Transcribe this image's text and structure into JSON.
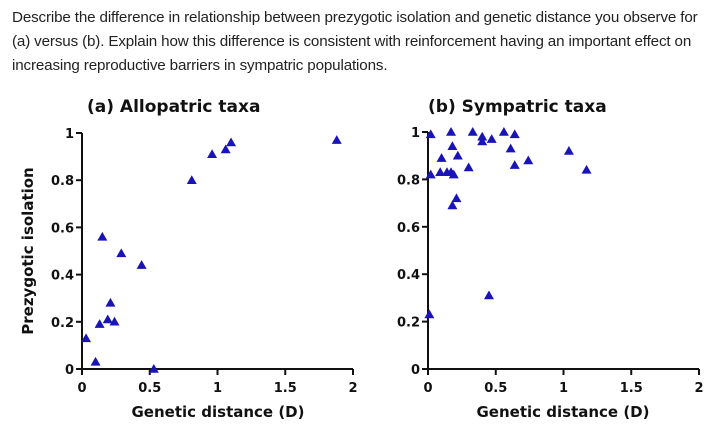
{
  "question": {
    "text": "Describe the difference in relationship between prezygotic isolation and genetic distance you observe for (a) versus (b). Explain  how this difference is consistent with reinforcement having an important effect on increasing reproductive barriers in sympatric populations."
  },
  "colors": {
    "marker": "#1a14b8",
    "axis": "#111111"
  },
  "chart_data": [
    {
      "type": "scatter",
      "title": "(a)  Allopatric taxa",
      "xlabel": "Genetic distance (D)",
      "ylabel": "Prezygotic isolation",
      "xlim": [
        0,
        2
      ],
      "ylim": [
        0,
        1
      ],
      "xticks": [
        0,
        0.5,
        1,
        1.5,
        2
      ],
      "xtick_labels": [
        "0",
        "0.5",
        "1",
        "1.5",
        "2"
      ],
      "yticks": [
        0,
        0.2,
        0.4,
        0.6,
        0.8,
        1
      ],
      "ytick_labels": [
        "0",
        "0.2",
        "0.4",
        "0.6",
        "0.8",
        "1"
      ],
      "grid": false,
      "marker": "triangle",
      "points": [
        {
          "x": 0.03,
          "y": 0.13
        },
        {
          "x": 0.1,
          "y": 0.03
        },
        {
          "x": 0.13,
          "y": 0.19
        },
        {
          "x": 0.19,
          "y": 0.21
        },
        {
          "x": 0.21,
          "y": 0.28
        },
        {
          "x": 0.24,
          "y": 0.2
        },
        {
          "x": 0.15,
          "y": 0.56
        },
        {
          "x": 0.29,
          "y": 0.49
        },
        {
          "x": 0.44,
          "y": 0.44
        },
        {
          "x": 0.53,
          "y": 0.0
        },
        {
          "x": 0.81,
          "y": 0.8
        },
        {
          "x": 0.96,
          "y": 0.91
        },
        {
          "x": 1.06,
          "y": 0.93
        },
        {
          "x": 1.1,
          "y": 0.96
        },
        {
          "x": 1.88,
          "y": 0.97
        }
      ]
    },
    {
      "type": "scatter",
      "title": "(b)  Sympatric taxa",
      "xlabel": "Genetic distance (D)",
      "ylabel": "",
      "xlim": [
        0,
        2
      ],
      "ylim": [
        0,
        1
      ],
      "xticks": [
        0,
        0.5,
        1,
        1.5,
        2
      ],
      "xtick_labels": [
        "0",
        "0.5",
        "1",
        "1.5",
        "2"
      ],
      "yticks": [
        0,
        0.2,
        0.4,
        0.6,
        0.8,
        1
      ],
      "ytick_labels": [
        "0",
        "0.2",
        "0.4",
        "0.6",
        "0.8",
        "1"
      ],
      "grid": false,
      "marker": "triangle",
      "points": [
        {
          "x": 0.02,
          "y": 0.99
        },
        {
          "x": 0.17,
          "y": 1.0
        },
        {
          "x": 0.33,
          "y": 1.0
        },
        {
          "x": 0.4,
          "y": 0.98
        },
        {
          "x": 0.4,
          "y": 0.96
        },
        {
          "x": 0.47,
          "y": 0.97
        },
        {
          "x": 0.56,
          "y": 1.0
        },
        {
          "x": 0.64,
          "y": 0.99
        },
        {
          "x": 0.18,
          "y": 0.94
        },
        {
          "x": 0.1,
          "y": 0.89
        },
        {
          "x": 0.22,
          "y": 0.9
        },
        {
          "x": 0.61,
          "y": 0.93
        },
        {
          "x": 0.64,
          "y": 0.86
        },
        {
          "x": 0.74,
          "y": 0.88
        },
        {
          "x": 1.04,
          "y": 0.92
        },
        {
          "x": 1.17,
          "y": 0.84
        },
        {
          "x": 0.3,
          "y": 0.85
        },
        {
          "x": 0.02,
          "y": 0.82
        },
        {
          "x": 0.09,
          "y": 0.83
        },
        {
          "x": 0.14,
          "y": 0.83
        },
        {
          "x": 0.17,
          "y": 0.83
        },
        {
          "x": 0.19,
          "y": 0.82
        },
        {
          "x": 0.21,
          "y": 0.72
        },
        {
          "x": 0.18,
          "y": 0.69
        },
        {
          "x": 0.01,
          "y": 0.23
        },
        {
          "x": 0.45,
          "y": 0.31
        }
      ]
    }
  ]
}
